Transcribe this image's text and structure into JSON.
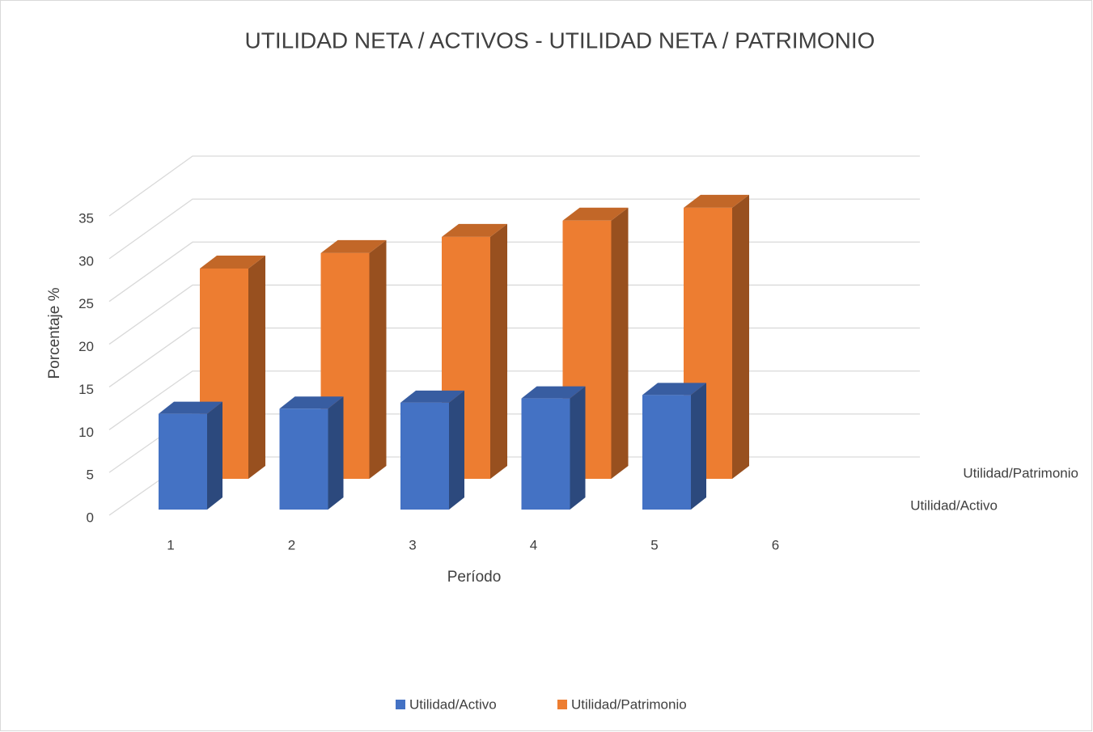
{
  "chart_data": {
    "type": "bar3d",
    "title": "UTILIDAD NETA / ACTIVOS - UTILIDAD NETA / PATRIMONIO",
    "x_label": "Período",
    "y_label": "Porcentaje %",
    "categories": [
      "1",
      "2",
      "3",
      "4",
      "5",
      "6"
    ],
    "series": [
      {
        "name": "Utilidad/Activo",
        "color": "#4472c4",
        "values": [
          11.2,
          11.8,
          12.5,
          13.0,
          13.4,
          null
        ]
      },
      {
        "name": "Utilidad/Patrimonio",
        "color": "#ed7d31",
        "values": [
          24.6,
          26.4,
          28.3,
          30.2,
          31.7,
          null
        ]
      }
    ],
    "ylim": [
      0,
      35
    ],
    "yticks": [
      0,
      5,
      10,
      15,
      20,
      25,
      30,
      35
    ],
    "grid": true,
    "legend": "bottom"
  }
}
